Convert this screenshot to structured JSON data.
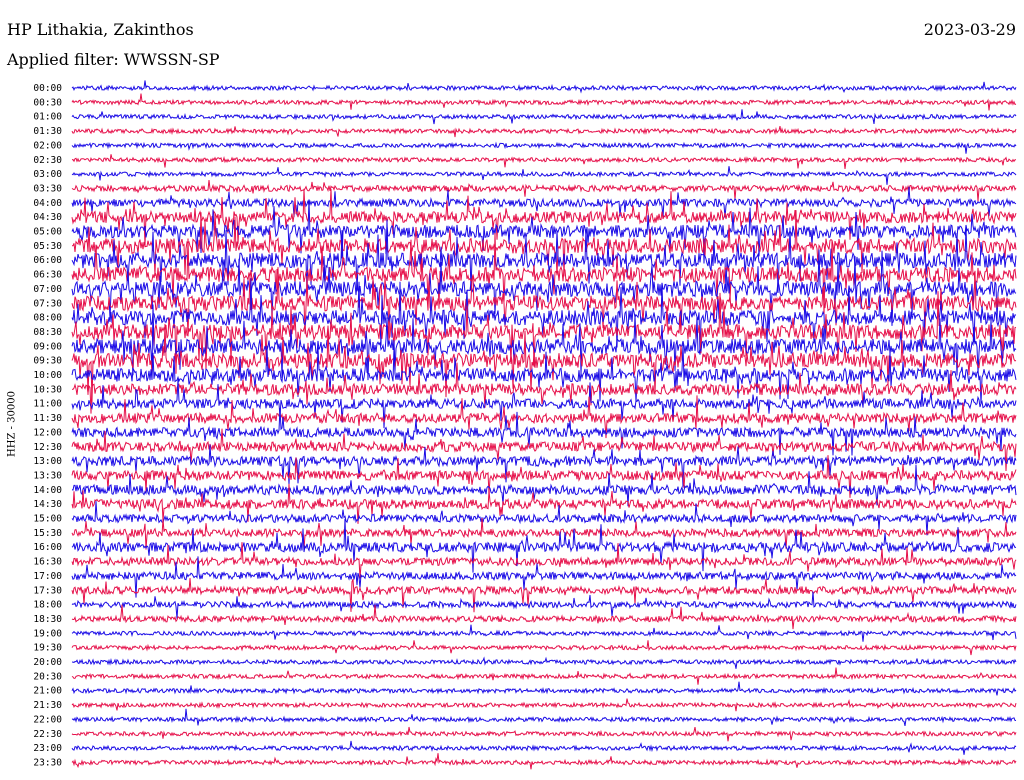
{
  "header": {
    "station": "HP Lithakia, Zakinthos",
    "date": "2023-03-29",
    "filter": "Applied filter: WWSSN-SP"
  },
  "chart_data": {
    "type": "line",
    "title": "HP Lithakia, Zakinthos",
    "subtitle": "Applied filter: WWSSN-SP",
    "ylabel": "HHZ - 30000",
    "tick_labels": [
      "00:00",
      "00:30",
      "01:00",
      "01:30",
      "02:00",
      "02:30",
      "03:00",
      "03:30",
      "04:00",
      "04:30",
      "05:00",
      "05:30",
      "06:00",
      "06:30",
      "07:00",
      "07:30",
      "08:00",
      "08:30",
      "09:00",
      "09:30",
      "10:00",
      "10:30",
      "11:00",
      "11:30",
      "12:00",
      "12:30",
      "13:00",
      "13:30",
      "14:00",
      "14:30",
      "15:00",
      "15:30",
      "16:00",
      "16:30",
      "17:00",
      "17:30",
      "18:00",
      "18:30",
      "19:00",
      "19:30",
      "20:00",
      "20:30",
      "21:00",
      "21:30",
      "22:00",
      "22:30",
      "23:00",
      "23:30"
    ],
    "trace_colors": [
      "#1a0be6",
      "#e6104a"
    ],
    "grid": false,
    "legend": "none",
    "activity": [
      1,
      1,
      1,
      1,
      1,
      1,
      1,
      2,
      3,
      5,
      6,
      7,
      7,
      7,
      7,
      7,
      7,
      7,
      7,
      7,
      6,
      5,
      4,
      4,
      4,
      4,
      4,
      4,
      4,
      4,
      3,
      3,
      4,
      3,
      3,
      3,
      2,
      2,
      1,
      1,
      1,
      1,
      1,
      1,
      1,
      1,
      1,
      1
    ]
  }
}
